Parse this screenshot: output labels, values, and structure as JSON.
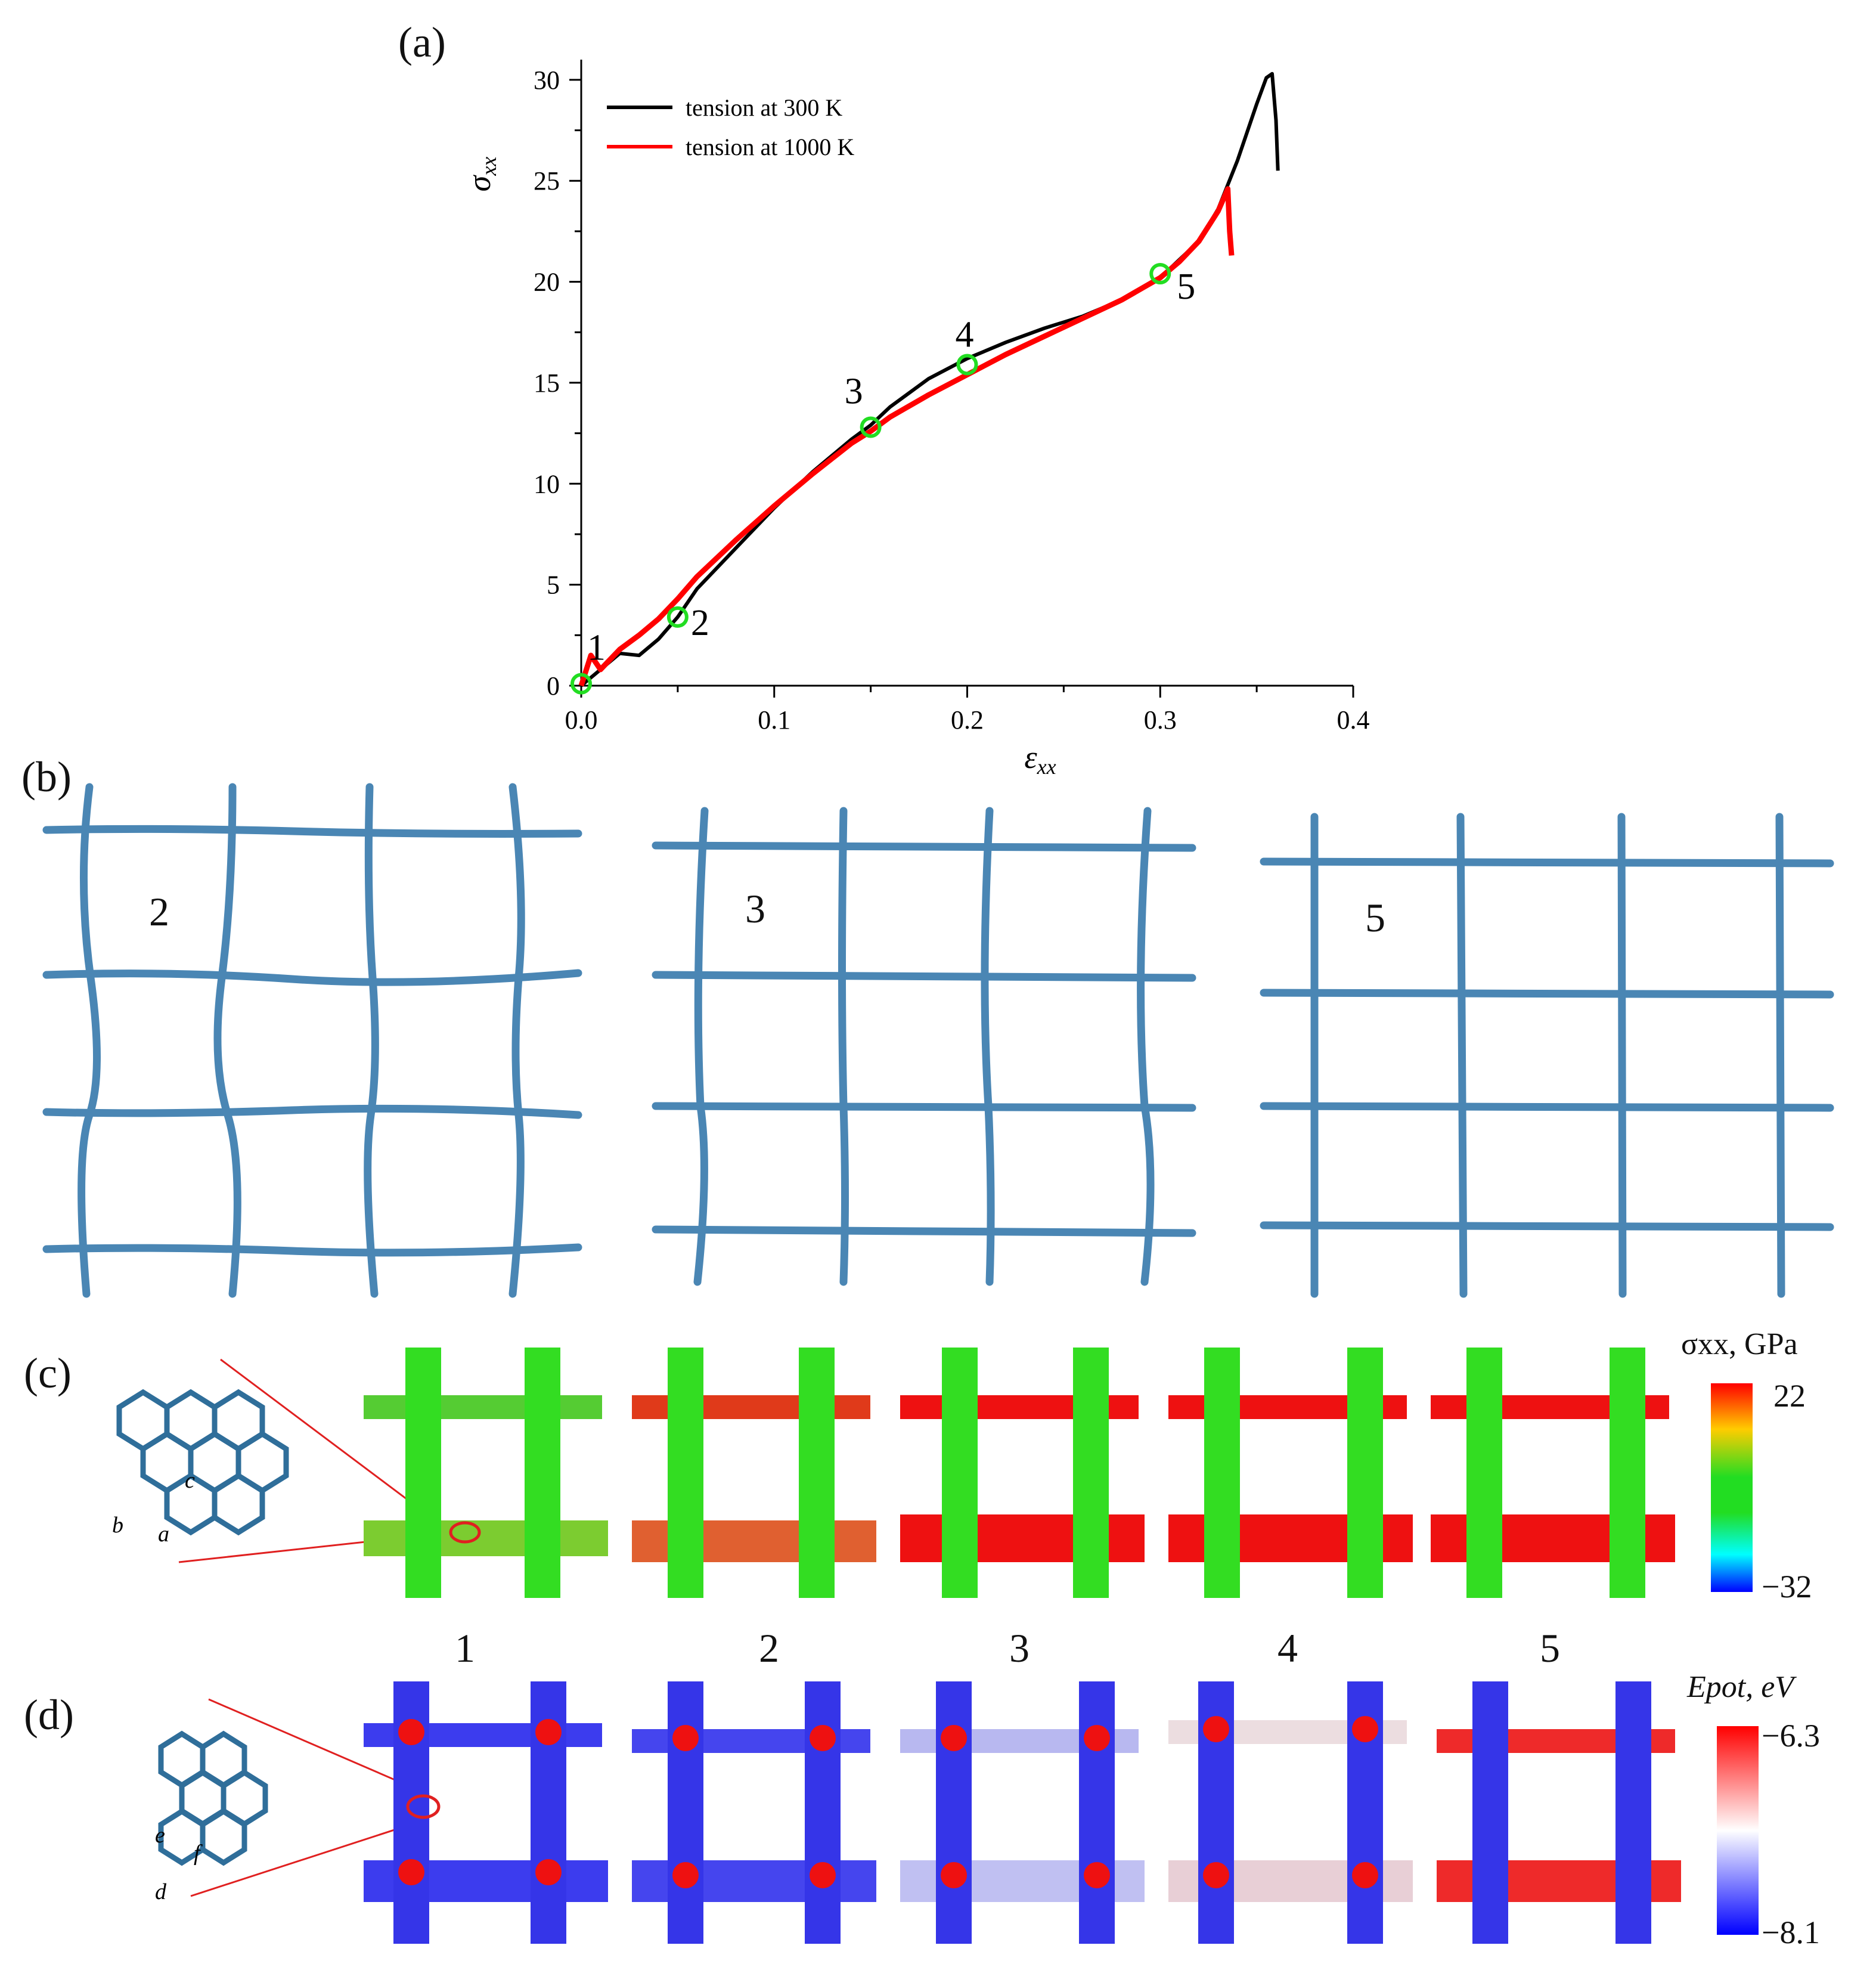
{
  "panel_labels": {
    "a": "(a)",
    "b": "(b)",
    "c": "(c)",
    "d": "(d)"
  },
  "chart_data": {
    "type": "line",
    "title": "",
    "xlabel": "ε_xx",
    "ylabel": "σ_xx",
    "xlim": [
      0,
      0.4
    ],
    "ylim": [
      0,
      31
    ],
    "xticks": [
      0.0,
      0.1,
      0.2,
      0.3,
      0.4
    ],
    "xtick_labels": [
      "0.0",
      "0.1",
      "0.2",
      "0.3",
      "0.4"
    ],
    "yticks": [
      0,
      5,
      10,
      15,
      20,
      25,
      30
    ],
    "ytick_labels": [
      "0",
      "5",
      "10",
      "15",
      "20",
      "25",
      "30"
    ],
    "legend_position": "top-left",
    "series": [
      {
        "name": "tension at 300 K",
        "color": "#000000",
        "x": [
          0.0,
          0.01,
          0.02,
          0.03,
          0.04,
          0.05,
          0.06,
          0.08,
          0.1,
          0.12,
          0.14,
          0.15,
          0.16,
          0.18,
          0.2,
          0.22,
          0.24,
          0.26,
          0.28,
          0.3,
          0.32,
          0.33,
          0.34,
          0.35,
          0.355,
          0.358,
          0.36,
          0.361
        ],
        "y": [
          0.0,
          0.8,
          1.6,
          1.5,
          2.3,
          3.4,
          4.8,
          6.8,
          8.8,
          10.6,
          12.2,
          12.9,
          13.8,
          15.2,
          16.2,
          17.0,
          17.7,
          18.3,
          19.1,
          20.2,
          22.0,
          23.6,
          26.0,
          28.8,
          30.1,
          30.3,
          28.0,
          25.5
        ]
      },
      {
        "name": "tension at 1000 K",
        "color": "#ff0000",
        "x": [
          0.0,
          0.005,
          0.01,
          0.02,
          0.03,
          0.04,
          0.05,
          0.06,
          0.08,
          0.1,
          0.12,
          0.14,
          0.15,
          0.16,
          0.18,
          0.2,
          0.22,
          0.24,
          0.26,
          0.28,
          0.3,
          0.31,
          0.32,
          0.33,
          0.335,
          0.336,
          0.337
        ],
        "y": [
          0.0,
          1.5,
          0.8,
          1.8,
          2.5,
          3.3,
          4.3,
          5.4,
          7.2,
          8.9,
          10.5,
          12.0,
          12.6,
          13.3,
          14.4,
          15.4,
          16.4,
          17.3,
          18.2,
          19.1,
          20.2,
          21.0,
          22.0,
          23.5,
          24.6,
          22.5,
          21.3
        ]
      }
    ],
    "markers": [
      {
        "label": "1",
        "x": 0.0,
        "y": 0.1
      },
      {
        "label": "2",
        "x": 0.05,
        "y": 3.4
      },
      {
        "label": "3",
        "x": 0.15,
        "y": 12.8
      },
      {
        "label": "4",
        "x": 0.2,
        "y": 15.9
      },
      {
        "label": "5",
        "x": 0.3,
        "y": 20.4
      }
    ],
    "marker_color": "#22dd22"
  },
  "panel_b": {
    "snapshots": [
      "2",
      "3",
      "5"
    ],
    "net_color": "#4a86b4"
  },
  "panel_c": {
    "colorbar": {
      "title": "σxx, GPa",
      "max": "22",
      "min": "−32"
    },
    "inset_labels": [
      "a",
      "b",
      "c"
    ],
    "states": [
      "1",
      "2",
      "3",
      "4",
      "5"
    ]
  },
  "panel_d": {
    "colorbar": {
      "title": "Epot, eV",
      "max": "−6.3",
      "min": "−8.1"
    },
    "inset_labels": [
      "d",
      "e",
      "f"
    ]
  }
}
